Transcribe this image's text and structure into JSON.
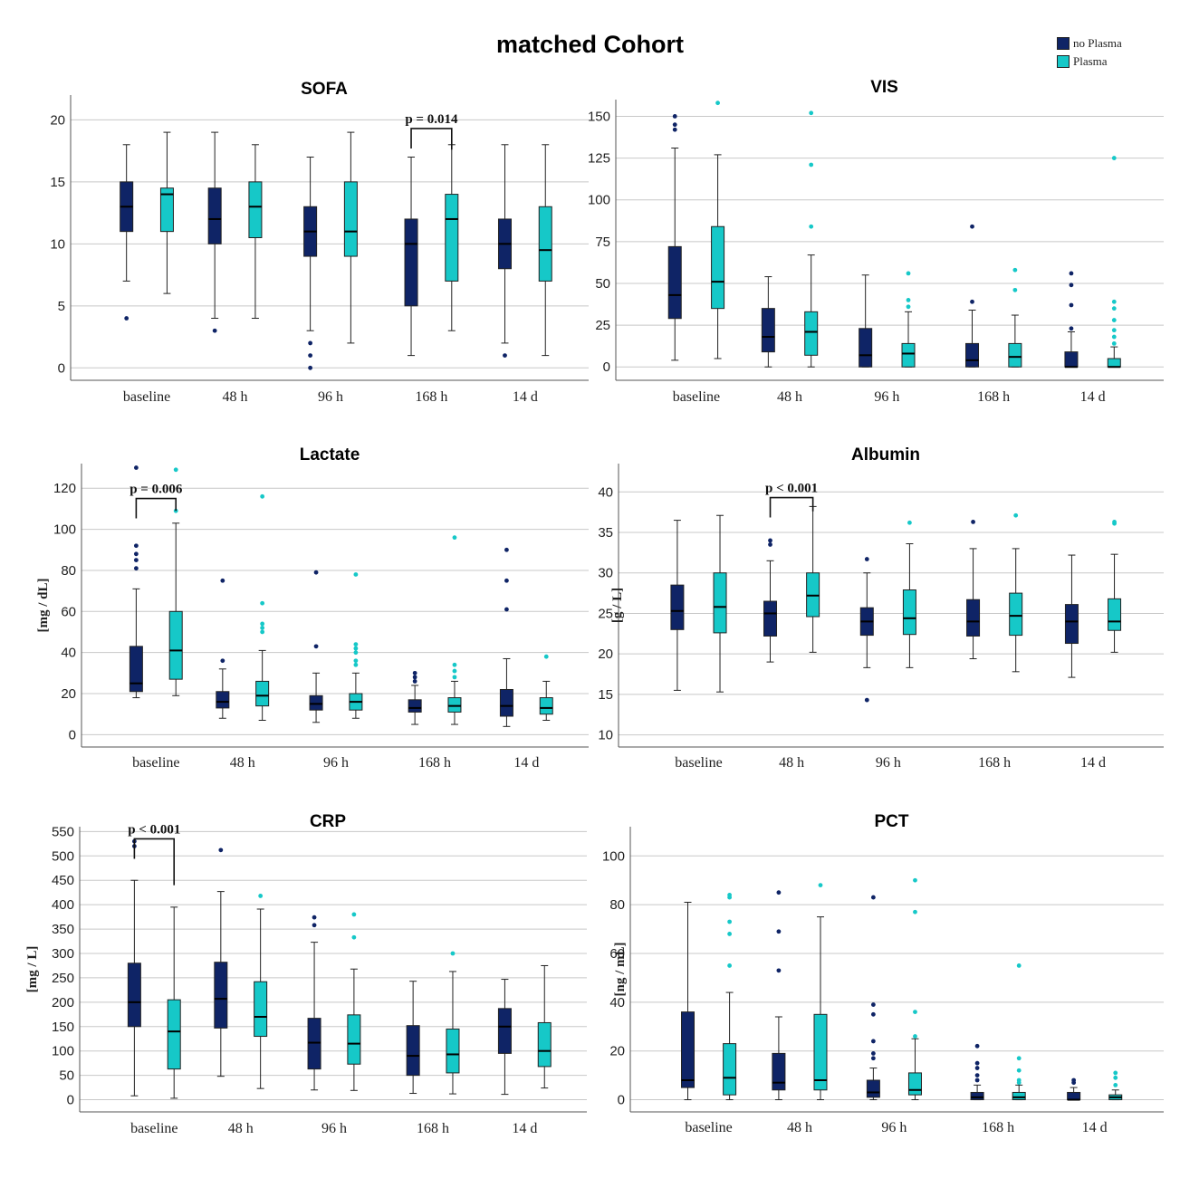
{
  "title": "matched Cohort",
  "legend": [
    {
      "label": "no Plasma",
      "color": "#0f2466"
    },
    {
      "label": "Plasma",
      "color": "#16c8c8"
    }
  ],
  "chart_data": [
    {
      "type": "box",
      "title": "SOFA",
      "ylabel": "",
      "ylim": [
        -1,
        22
      ],
      "yticks": [
        0,
        5,
        10,
        15,
        20
      ],
      "categories": [
        "baseline",
        "48 h",
        "96 h",
        "168 h",
        "14 d"
      ],
      "series": [
        {
          "name": "no Plasma",
          "boxes": [
            {
              "min": 7,
              "q1": 11,
              "median": 13,
              "q3": 15,
              "max": 18,
              "outliers": [
                4
              ]
            },
            {
              "min": 4,
              "q1": 10,
              "median": 12,
              "q3": 14.5,
              "max": 19,
              "outliers": [
                3
              ]
            },
            {
              "min": 3,
              "q1": 9,
              "median": 11,
              "q3": 13,
              "max": 17,
              "outliers": [
                2,
                1,
                0
              ]
            },
            {
              "min": 1,
              "q1": 5,
              "median": 10,
              "q3": 12,
              "max": 17,
              "outliers": []
            },
            {
              "min": 2,
              "q1": 8,
              "median": 10,
              "q3": 12,
              "max": 18,
              "outliers": [
                1
              ]
            }
          ]
        },
        {
          "name": "Plasma",
          "boxes": [
            {
              "min": 6,
              "q1": 11,
              "median": 14,
              "q3": 14.5,
              "max": 19,
              "outliers": []
            },
            {
              "min": 4,
              "q1": 10.5,
              "median": 13,
              "q3": 15,
              "max": 18,
              "outliers": []
            },
            {
              "min": 2,
              "q1": 9,
              "median": 11,
              "q3": 15,
              "max": 19,
              "outliers": []
            },
            {
              "min": 3,
              "q1": 7,
              "median": 12,
              "q3": 14,
              "max": 18,
              "outliers": []
            },
            {
              "min": 1,
              "q1": 7,
              "median": 9.5,
              "q3": 13,
              "max": 18,
              "outliers": []
            }
          ]
        }
      ],
      "annotations": [
        {
          "text": "p = 0.014",
          "category": 3,
          "y": 19.3,
          "drop": 17.6
        }
      ]
    },
    {
      "type": "box",
      "title": "VIS",
      "ylabel": "",
      "ylim": [
        -8,
        160
      ],
      "yticks": [
        0,
        25,
        50,
        75,
        100,
        125,
        150
      ],
      "categories": [
        "baseline",
        "48 h",
        "96 h",
        "168 h",
        "14 d"
      ],
      "series": [
        {
          "name": "no Plasma",
          "boxes": [
            {
              "min": 4,
              "q1": 29,
              "median": 43,
              "q3": 72,
              "max": 131,
              "outliers": [
                150,
                145,
                142
              ]
            },
            {
              "min": 0,
              "q1": 9,
              "median": 18,
              "q3": 35,
              "max": 54,
              "outliers": []
            },
            {
              "min": 0,
              "q1": 0,
              "median": 7,
              "q3": 23,
              "max": 55,
              "outliers": []
            },
            {
              "min": 0,
              "q1": 0,
              "median": 4,
              "q3": 14,
              "max": 34,
              "outliers": [
                39,
                84
              ]
            },
            {
              "min": 0,
              "q1": 0,
              "median": 0,
              "q3": 9,
              "max": 21,
              "outliers": [
                23,
                37,
                49,
                56
              ]
            }
          ]
        },
        {
          "name": "Plasma",
          "boxes": [
            {
              "min": 5,
              "q1": 35,
              "median": 51,
              "q3": 84,
              "max": 127,
              "outliers": [
                158
              ]
            },
            {
              "min": 0,
              "q1": 7,
              "median": 21,
              "q3": 33,
              "max": 67,
              "outliers": [
                84,
                121,
                152
              ]
            },
            {
              "min": 0,
              "q1": 0,
              "median": 8,
              "q3": 14,
              "max": 33,
              "outliers": [
                36,
                40,
                56
              ]
            },
            {
              "min": 0,
              "q1": 0,
              "median": 6,
              "q3": 14,
              "max": 31,
              "outliers": [
                46,
                58
              ]
            },
            {
              "min": 0,
              "q1": 0,
              "median": 0,
              "q3": 5,
              "max": 12,
              "outliers": [
                14,
                18,
                22,
                28,
                35,
                39,
                125
              ]
            }
          ]
        }
      ],
      "annotations": []
    },
    {
      "type": "box",
      "title": "Lactate",
      "ylabel": "[mg / dL]",
      "ylim": [
        -6,
        132
      ],
      "yticks": [
        0,
        20,
        40,
        60,
        80,
        100,
        120
      ],
      "categories": [
        "baseline",
        "48 h",
        "96 h",
        "168 h",
        "14 d"
      ],
      "series": [
        {
          "name": "no Plasma",
          "boxes": [
            {
              "min": 18,
              "q1": 21,
              "median": 25,
              "q3": 43,
              "max": 71,
              "outliers": [
                81,
                85,
                88,
                92,
                130
              ]
            },
            {
              "min": 8,
              "q1": 13,
              "median": 16,
              "q3": 21,
              "max": 32,
              "outliers": [
                36,
                75
              ]
            },
            {
              "min": 6,
              "q1": 12,
              "median": 15,
              "q3": 19,
              "max": 30,
              "outliers": [
                43,
                79
              ]
            },
            {
              "min": 5,
              "q1": 11,
              "median": 13,
              "q3": 17,
              "max": 24,
              "outliers": [
                26,
                28,
                30
              ]
            },
            {
              "min": 4,
              "q1": 9,
              "median": 14,
              "q3": 22,
              "max": 37,
              "outliers": [
                61,
                75,
                90
              ]
            }
          ]
        },
        {
          "name": "Plasma",
          "boxes": [
            {
              "min": 19,
              "q1": 27,
              "median": 41,
              "q3": 60,
              "max": 103,
              "outliers": [
                109,
                129
              ]
            },
            {
              "min": 7,
              "q1": 14,
              "median": 19,
              "q3": 26,
              "max": 41,
              "outliers": [
                50,
                52,
                54,
                64,
                116
              ]
            },
            {
              "min": 8,
              "q1": 12,
              "median": 16,
              "q3": 20,
              "max": 30,
              "outliers": [
                34,
                36,
                40,
                42,
                44,
                78
              ]
            },
            {
              "min": 5,
              "q1": 11,
              "median": 14,
              "q3": 18,
              "max": 26,
              "outliers": [
                28,
                31,
                34,
                96
              ]
            },
            {
              "min": 7,
              "q1": 10,
              "median": 13,
              "q3": 18,
              "max": 26,
              "outliers": [
                38
              ]
            }
          ]
        }
      ],
      "annotations": [
        {
          "text": "p = 0.006",
          "category": 0,
          "y": 115,
          "drop": 109
        }
      ]
    },
    {
      "type": "box",
      "title": "Albumin",
      "ylabel": "[g / L]",
      "ylim": [
        8.5,
        43.5
      ],
      "yticks": [
        10,
        15,
        20,
        25,
        30,
        35,
        40
      ],
      "categories": [
        "baseline",
        "48 h",
        "96 h",
        "168 h",
        "14 d"
      ],
      "series": [
        {
          "name": "no Plasma",
          "boxes": [
            {
              "min": 15.5,
              "q1": 23,
              "median": 25.3,
              "q3": 28.5,
              "max": 36.5,
              "outliers": []
            },
            {
              "min": 19,
              "q1": 22.2,
              "median": 25,
              "q3": 26.5,
              "max": 31.5,
              "outliers": [
                33.5,
                34
              ]
            },
            {
              "min": 18.3,
              "q1": 22.3,
              "median": 24,
              "q3": 25.7,
              "max": 30,
              "outliers": [
                31.7,
                14.3
              ]
            },
            {
              "min": 19.4,
              "q1": 22.2,
              "median": 24,
              "q3": 26.7,
              "max": 33,
              "outliers": [
                36.3
              ]
            },
            {
              "min": 17.1,
              "q1": 21.3,
              "median": 24,
              "q3": 26.1,
              "max": 32.2,
              "outliers": []
            }
          ]
        },
        {
          "name": "Plasma",
          "boxes": [
            {
              "min": 15.3,
              "q1": 22.6,
              "median": 25.8,
              "q3": 30,
              "max": 37.1,
              "outliers": []
            },
            {
              "min": 20.2,
              "q1": 24.6,
              "median": 27.2,
              "q3": 30,
              "max": 38.2,
              "outliers": []
            },
            {
              "min": 18.3,
              "q1": 22.4,
              "median": 24.4,
              "q3": 27.9,
              "max": 33.6,
              "outliers": [
                36.2
              ]
            },
            {
              "min": 17.8,
              "q1": 22.3,
              "median": 24.7,
              "q3": 27.5,
              "max": 33,
              "outliers": [
                37.1
              ]
            },
            {
              "min": 20.2,
              "q1": 22.9,
              "median": 24,
              "q3": 26.8,
              "max": 32.3,
              "outliers": [
                36.1,
                36.3
              ]
            }
          ]
        }
      ],
      "annotations": [
        {
          "text": "p < 0.001",
          "category": 1,
          "y": 39.3,
          "drop": 37.6
        }
      ]
    },
    {
      "type": "box",
      "title": "CRP",
      "ylabel": "[mg / L]",
      "ylim": [
        -25,
        560
      ],
      "yticks": [
        0,
        50,
        100,
        150,
        200,
        250,
        300,
        350,
        400,
        450,
        500,
        550
      ],
      "categories": [
        "baseline",
        "48 h",
        "96 h",
        "168 h",
        "14 d"
      ],
      "series": [
        {
          "name": "no Plasma",
          "boxes": [
            {
              "min": 8,
              "q1": 150,
              "median": 200,
              "q3": 280,
              "max": 450,
              "outliers": [
                520,
                530
              ]
            },
            {
              "min": 48,
              "q1": 147,
              "median": 207,
              "q3": 282,
              "max": 427,
              "outliers": [
                512
              ]
            },
            {
              "min": 20,
              "q1": 63,
              "median": 117,
              "q3": 167,
              "max": 323,
              "outliers": [
                358,
                374
              ]
            },
            {
              "min": 13,
              "q1": 50,
              "median": 90,
              "q3": 152,
              "max": 243,
              "outliers": []
            },
            {
              "min": 11,
              "q1": 95,
              "median": 150,
              "q3": 187,
              "max": 247,
              "outliers": []
            }
          ]
        },
        {
          "name": "Plasma",
          "boxes": [
            {
              "min": 3,
              "q1": 63,
              "median": 140,
              "q3": 205,
              "max": 395,
              "outliers": []
            },
            {
              "min": 23,
              "q1": 130,
              "median": 170,
              "q3": 242,
              "max": 391,
              "outliers": [
                418
              ]
            },
            {
              "min": 19,
              "q1": 73,
              "median": 115,
              "q3": 174,
              "max": 268,
              "outliers": [
                333,
                380
              ]
            },
            {
              "min": 12,
              "q1": 55,
              "median": 93,
              "q3": 145,
              "max": 263,
              "outliers": [
                300
              ]
            },
            {
              "min": 24,
              "q1": 68,
              "median": 100,
              "q3": 158,
              "max": 275,
              "outliers": []
            }
          ]
        }
      ],
      "annotations": [
        {
          "text": "p < 0.001",
          "category": 0,
          "y": 535,
          "drop": 440
        }
      ]
    },
    {
      "type": "box",
      "title": "PCT",
      "ylabel": "[ng / mL]",
      "ylim": [
        -5,
        112
      ],
      "yticks": [
        0,
        20,
        40,
        60,
        80,
        100
      ],
      "categories": [
        "baseline",
        "48 h",
        "96 h",
        "168 h",
        "14 d"
      ],
      "series": [
        {
          "name": "no Plasma",
          "boxes": [
            {
              "min": 0,
              "q1": 5,
              "median": 8,
              "q3": 36,
              "max": 81,
              "outliers": []
            },
            {
              "min": 0,
              "q1": 4,
              "median": 7,
              "q3": 19,
              "max": 34,
              "outliers": [
                53,
                69,
                85
              ]
            },
            {
              "min": 0,
              "q1": 1,
              "median": 3,
              "q3": 8,
              "max": 13,
              "outliers": [
                17,
                19,
                24,
                35,
                39,
                83
              ]
            },
            {
              "min": 0,
              "q1": 0,
              "median": 1,
              "q3": 3,
              "max": 6,
              "outliers": [
                8,
                10,
                13,
                15,
                22
              ]
            },
            {
              "min": 0,
              "q1": 0,
              "median": 0,
              "q3": 3,
              "max": 5,
              "outliers": [
                7,
                8
              ]
            }
          ]
        },
        {
          "name": "Plasma",
          "boxes": [
            {
              "min": 0,
              "q1": 2,
              "median": 9,
              "q3": 23,
              "max": 44,
              "outliers": [
                55,
                68,
                73,
                83,
                84
              ]
            },
            {
              "min": 0,
              "q1": 4,
              "median": 8,
              "q3": 35,
              "max": 75,
              "outliers": [
                88
              ]
            },
            {
              "min": 0,
              "q1": 2,
              "median": 4,
              "q3": 11,
              "max": 25,
              "outliers": [
                26,
                36,
                77,
                90
              ]
            },
            {
              "min": 0,
              "q1": 0,
              "median": 1,
              "q3": 3,
              "max": 6,
              "outliers": [
                7,
                8,
                12,
                17,
                55
              ]
            },
            {
              "min": 0,
              "q1": 0,
              "median": 1,
              "q3": 2,
              "max": 4,
              "outliers": [
                6,
                9,
                11
              ]
            }
          ]
        }
      ],
      "annotations": []
    }
  ]
}
